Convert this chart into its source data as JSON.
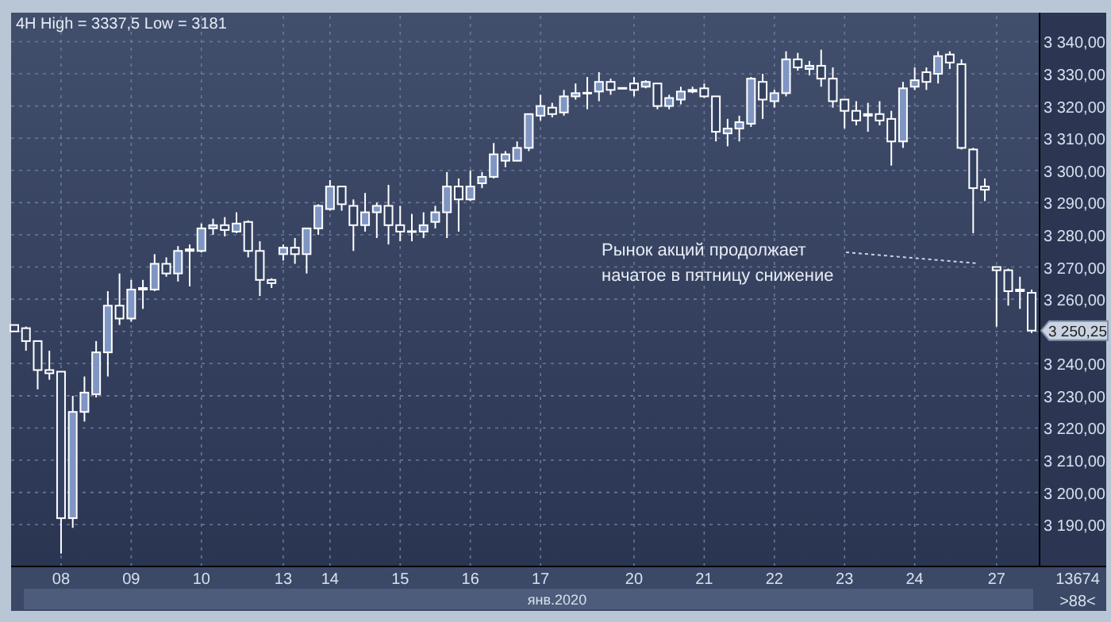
{
  "chart_data": {
    "type": "candlestick",
    "title": "4H High = 3337,5 Low = 3181",
    "xlabel": "янв.2020",
    "categories": [
      null,
      null,
      null,
      null,
      "08",
      null,
      null,
      null,
      null,
      null,
      "09",
      null,
      null,
      null,
      null,
      null,
      "10",
      null,
      null,
      null,
      null,
      null,
      null,
      "13",
      null,
      null,
      null,
      "14",
      null,
      null,
      null,
      null,
      null,
      "15",
      null,
      null,
      null,
      null,
      null,
      "16",
      null,
      null,
      null,
      null,
      null,
      "17",
      null,
      null,
      null,
      null,
      null,
      null,
      null,
      "20",
      null,
      null,
      null,
      null,
      null,
      "21",
      null,
      null,
      null,
      null,
      null,
      "22",
      null,
      null,
      null,
      null,
      null,
      "23",
      null,
      null,
      null,
      null,
      null,
      "24",
      null,
      null,
      null,
      null,
      null,
      null,
      "27",
      null,
      null,
      null
    ],
    "ohlc": [
      [
        3252,
        3252,
        3250,
        3250
      ],
      [
        3251,
        3251.5,
        3244,
        3247
      ],
      [
        3247,
        3247,
        3232,
        3238
      ],
      [
        3238,
        3244,
        3235,
        3237
      ],
      [
        3237.5,
        3237.5,
        3181,
        3192
      ],
      [
        3192,
        3230,
        3189,
        3225
      ],
      [
        3225,
        3236,
        3222,
        3231
      ],
      [
        3230.5,
        3247,
        3229.5,
        3243.5
      ],
      [
        3243.5,
        3262.5,
        3236,
        3258
      ],
      [
        3258,
        3268,
        3252,
        3254
      ],
      [
        3254,
        3266,
        3253,
        3263
      ],
      [
        3263,
        3266,
        3257,
        3263.5
      ],
      [
        3263,
        3274,
        3262.5,
        3271
      ],
      [
        3271,
        3273,
        3267,
        3268
      ],
      [
        3268,
        3276.5,
        3265.5,
        3275
      ],
      [
        3275,
        3277,
        3264,
        3275.5
      ],
      [
        3275,
        3283.5,
        3274.5,
        3282
      ],
      [
        3282,
        3285,
        3280,
        3283
      ],
      [
        3283,
        3285.5,
        3279.5,
        3281.5
      ],
      [
        3281,
        3287,
        3280.5,
        3283.5
      ],
      [
        3284,
        3284.5,
        3273,
        3275
      ],
      [
        3275,
        3278,
        3261,
        3266
      ],
      [
        3266,
        3266.5,
        3263.5,
        3265
      ],
      [
        3274,
        3277,
        3272,
        3276
      ],
      [
        3276,
        3279,
        3271,
        3274
      ],
      [
        3274,
        3282,
        3268,
        3282
      ],
      [
        3282,
        3289.5,
        3280,
        3289
      ],
      [
        3288,
        3297,
        3287.5,
        3295
      ],
      [
        3295,
        3295,
        3287.5,
        3289.5
      ],
      [
        3289,
        3291,
        3275,
        3283
      ],
      [
        3283,
        3293,
        3281,
        3287
      ],
      [
        3287,
        3290,
        3279,
        3289
      ],
      [
        3289,
        3295.5,
        3277,
        3283
      ],
      [
        3283,
        3289,
        3278,
        3281
      ],
      [
        3281,
        3286.5,
        3278,
        3281
      ],
      [
        3281,
        3287,
        3279,
        3283
      ],
      [
        3284,
        3289,
        3282,
        3287
      ],
      [
        3287,
        3299.5,
        3279,
        3295
      ],
      [
        3295,
        3297.5,
        3281,
        3291
      ],
      [
        3291,
        3300,
        3290.5,
        3295
      ],
      [
        3296,
        3299.5,
        3294.5,
        3298
      ],
      [
        3298,
        3308.5,
        3297.5,
        3305
      ],
      [
        3303,
        3306,
        3301,
        3305
      ],
      [
        3303,
        3309,
        3303,
        3307
      ],
      [
        3307,
        3317.5,
        3306,
        3317.5
      ],
      [
        3317,
        3323.5,
        3315.5,
        3320
      ],
      [
        3319.5,
        3321,
        3316.5,
        3317.5
      ],
      [
        3318,
        3325,
        3317,
        3323
      ],
      [
        3323,
        3327,
        3322,
        3324
      ],
      [
        3324,
        3329,
        3319,
        3324
      ],
      [
        3324.5,
        3330.5,
        3321.5,
        3327.5
      ],
      [
        3327.5,
        3328.5,
        3323.5,
        3325
      ],
      [
        3325.5,
        3325.5,
        3325.5,
        3325.5
      ],
      [
        3327,
        3329,
        3323,
        3325
      ],
      [
        3326,
        3328,
        3325.5,
        3327.5
      ],
      [
        3327,
        3327,
        3319,
        3320
      ],
      [
        3320,
        3323.5,
        3319,
        3322.5
      ],
      [
        3322,
        3326,
        3320.5,
        3324.5
      ],
      [
        3325,
        3326,
        3324,
        3324.5
      ],
      [
        3325.5,
        3327,
        3322.5,
        3323
      ],
      [
        3323,
        3323,
        3309,
        3312
      ],
      [
        3311.5,
        3316,
        3307.5,
        3313
      ],
      [
        3313,
        3317,
        3309,
        3315
      ],
      [
        3314.5,
        3329,
        3313.5,
        3328.5
      ],
      [
        3327.5,
        3330,
        3316,
        3322
      ],
      [
        3321.5,
        3325,
        3319.5,
        3324
      ],
      [
        3324,
        3337,
        3323,
        3334.5
      ],
      [
        3334.5,
        3336.5,
        3331,
        3332
      ],
      [
        3331.5,
        3334,
        3329.5,
        3332.5
      ],
      [
        3332.5,
        3337.5,
        3326,
        3328.5
      ],
      [
        3328.5,
        3332,
        3319.5,
        3321.5
      ],
      [
        3322,
        3322,
        3313,
        3318.5
      ],
      [
        3318.5,
        3321.5,
        3314,
        3315.5
      ],
      [
        3317.5,
        3321,
        3312,
        3317
      ],
      [
        3317.5,
        3321.5,
        3314,
        3315.5
      ],
      [
        3316,
        3318.5,
        3301.5,
        3309
      ],
      [
        3309,
        3327.5,
        3307,
        3325.5
      ],
      [
        3326,
        3332,
        3325,
        3328
      ],
      [
        3330.5,
        3332,
        3325,
        3327.5
      ],
      [
        3330,
        3337,
        3327,
        3335.5
      ],
      [
        3336,
        3337,
        3331.5,
        3333.5
      ],
      [
        3333,
        3334.5,
        3306.5,
        3307
      ],
      [
        3306.5,
        3307,
        3280.5,
        3294.5
      ],
      [
        3295,
        3297.5,
        3290.5,
        3294
      ],
      [
        3270,
        3270,
        3251.5,
        3269
      ],
      [
        3269,
        3269.5,
        3258,
        3262.5
      ],
      [
        3263,
        3267,
        3257,
        3262.5
      ],
      [
        3262,
        3263,
        3249.5,
        3250.25
      ]
    ],
    "ylim": [
      3177,
      3348
    ],
    "yticks": [
      {
        "value": 3190,
        "label": "3 190,00"
      },
      {
        "value": 3200,
        "label": "3 200,00"
      },
      {
        "value": 3210,
        "label": "3 210,00"
      },
      {
        "value": 3220,
        "label": "3 220,00"
      },
      {
        "value": 3230,
        "label": "3 230,00"
      },
      {
        "value": 3240,
        "label": "3 240,00"
      },
      {
        "value": 3250,
        "label": null
      },
      {
        "value": 3260,
        "label": "3 260,00"
      },
      {
        "value": 3270,
        "label": "3 270,00"
      },
      {
        "value": 3280,
        "label": "3 280,00"
      },
      {
        "value": 3290,
        "label": "3 290,00"
      },
      {
        "value": 3300,
        "label": "3 300,00"
      },
      {
        "value": 3310,
        "label": "3 310,00"
      },
      {
        "value": 3320,
        "label": "3 320,00"
      },
      {
        "value": 3330,
        "label": "3 330,00"
      },
      {
        "value": 3340,
        "label": "3 340,00"
      }
    ],
    "grid": true,
    "annotations": [
      "Рынок акций продолжает\nначатое в пятницу снижение",
      "3 250,25",
      "13674",
      ">88<"
    ]
  }
}
